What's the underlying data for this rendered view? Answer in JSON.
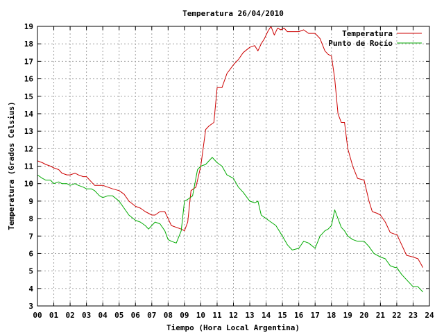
{
  "chart_data": {
    "type": "line",
    "title": "Temperatura 26/04/2010",
    "xlabel": "Tiempo (Hora Local Argentina)",
    "ylabel": "Temperatura (Grados Celsius)",
    "xlim": [
      0,
      24
    ],
    "ylim": [
      3,
      19
    ],
    "x_ticks": [
      "00",
      "01",
      "02",
      "03",
      "04",
      "05",
      "06",
      "07",
      "08",
      "09",
      "10",
      "11",
      "12",
      "13",
      "14",
      "15",
      "16",
      "17",
      "18",
      "19",
      "20",
      "21",
      "22",
      "23",
      "24"
    ],
    "y_ticks": [
      "3",
      "4",
      "5",
      "6",
      "7",
      "8",
      "9",
      "10",
      "11",
      "12",
      "13",
      "14",
      "15",
      "16",
      "17",
      "18",
      "19"
    ],
    "grid": true,
    "legend_position": "top-right",
    "series": [
      {
        "name": "Temperatura",
        "color": "#cc0000",
        "x": [
          0.0,
          0.3,
          0.5,
          0.8,
          1.0,
          1.3,
          1.5,
          1.8,
          2.0,
          2.3,
          2.5,
          2.8,
          3.0,
          3.3,
          3.5,
          3.8,
          4.0,
          4.3,
          4.6,
          5.0,
          5.3,
          5.6,
          6.0,
          6.3,
          6.6,
          7.0,
          7.2,
          7.5,
          7.8,
          8.0,
          8.2,
          8.5,
          8.8,
          9.0,
          9.2,
          9.4,
          9.7,
          10.0,
          10.3,
          10.5,
          10.8,
          11.0,
          11.3,
          11.6,
          12.0,
          12.3,
          12.6,
          13.0,
          13.3,
          13.5,
          13.7,
          13.9,
          14.1,
          14.3,
          14.5,
          14.7,
          14.9,
          15.1,
          15.3,
          15.6,
          16.0,
          16.3,
          16.6,
          17.0,
          17.3,
          17.6,
          17.8,
          18.0,
          18.2,
          18.4,
          18.6,
          18.8,
          19.0,
          19.3,
          19.6,
          20.0,
          20.3,
          20.5,
          20.8,
          21.0,
          21.3,
          21.6,
          21.9,
          22.0,
          22.3,
          22.6,
          23.0,
          23.3,
          23.6
        ],
        "values": [
          11.3,
          11.2,
          11.1,
          11.0,
          10.9,
          10.8,
          10.6,
          10.5,
          10.5,
          10.6,
          10.5,
          10.4,
          10.4,
          10.1,
          9.9,
          9.9,
          9.9,
          9.8,
          9.7,
          9.6,
          9.4,
          9.0,
          8.7,
          8.6,
          8.4,
          8.2,
          8.2,
          8.4,
          8.4,
          8.0,
          7.6,
          7.5,
          7.4,
          7.3,
          7.8,
          9.6,
          9.8,
          11.0,
          13.1,
          13.3,
          13.5,
          15.5,
          15.5,
          16.3,
          16.8,
          17.1,
          17.5,
          17.8,
          17.9,
          17.6,
          18.0,
          18.3,
          18.7,
          19.0,
          18.5,
          18.9,
          18.8,
          18.9,
          18.7,
          18.7,
          18.7,
          18.8,
          18.6,
          18.6,
          18.3,
          17.6,
          17.4,
          17.3,
          16.0,
          14.0,
          13.5,
          13.5,
          12.0,
          11.0,
          10.3,
          10.2,
          9.0,
          8.4,
          8.3,
          8.2,
          7.8,
          7.2,
          7.1,
          7.1,
          6.5,
          5.9,
          5.8,
          5.7,
          5.2
        ]
      },
      {
        "name": "Punto de Rocío",
        "color": "#00aa00",
        "x": [
          0.0,
          0.3,
          0.5,
          0.8,
          1.0,
          1.3,
          1.5,
          1.8,
          2.0,
          2.3,
          2.5,
          2.8,
          3.0,
          3.3,
          3.5,
          3.8,
          4.0,
          4.3,
          4.6,
          5.0,
          5.3,
          5.6,
          6.0,
          6.3,
          6.6,
          6.8,
          7.0,
          7.2,
          7.5,
          7.8,
          8.0,
          8.2,
          8.5,
          8.8,
          9.0,
          9.2,
          9.5,
          9.8,
          10.0,
          10.3,
          10.5,
          10.7,
          11.0,
          11.3,
          11.6,
          12.0,
          12.3,
          12.6,
          13.0,
          13.3,
          13.5,
          13.7,
          14.0,
          14.3,
          14.6,
          15.0,
          15.3,
          15.6,
          16.0,
          16.3,
          16.6,
          17.0,
          17.3,
          17.6,
          17.8,
          18.0,
          18.2,
          18.4,
          18.6,
          18.8,
          19.0,
          19.3,
          19.6,
          20.0,
          20.3,
          20.6,
          21.0,
          21.3,
          21.6,
          21.9,
          22.0,
          22.3,
          22.6,
          23.0,
          23.3,
          23.6
        ],
        "values": [
          10.5,
          10.3,
          10.2,
          10.2,
          10.0,
          10.1,
          10.0,
          10.0,
          9.9,
          10.0,
          9.9,
          9.8,
          9.7,
          9.7,
          9.6,
          9.3,
          9.2,
          9.3,
          9.3,
          9.0,
          8.6,
          8.2,
          7.9,
          7.8,
          7.6,
          7.4,
          7.6,
          7.8,
          7.7,
          7.3,
          6.8,
          6.7,
          6.6,
          7.3,
          9.0,
          9.1,
          9.3,
          10.8,
          11.0,
          11.1,
          11.3,
          11.5,
          11.2,
          11.0,
          10.5,
          10.3,
          9.8,
          9.5,
          9.0,
          8.9,
          9.0,
          8.2,
          8.0,
          7.8,
          7.6,
          7.0,
          6.5,
          6.2,
          6.3,
          6.7,
          6.6,
          6.3,
          7.0,
          7.3,
          7.4,
          7.6,
          8.5,
          8.0,
          7.5,
          7.3,
          7.0,
          6.8,
          6.7,
          6.7,
          6.4,
          6.0,
          5.8,
          5.7,
          5.3,
          5.2,
          5.2,
          4.8,
          4.5,
          4.1,
          4.1,
          3.8
        ]
      }
    ]
  }
}
